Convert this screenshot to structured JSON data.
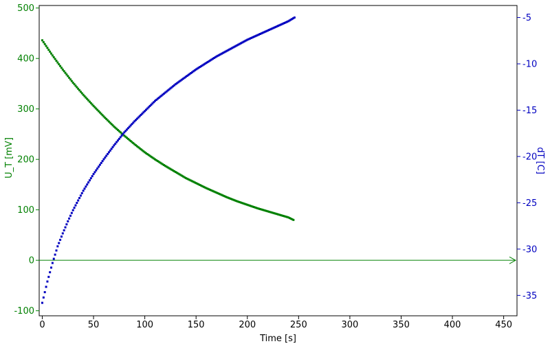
{
  "chart_data": {
    "type": "scatter",
    "xlabel": "Time [s]",
    "x_ticks": [
      0,
      50,
      100,
      150,
      200,
      250,
      300,
      350,
      400,
      450
    ],
    "xlim": [
      -3,
      463
    ],
    "y_left": {
      "label": "U_T [mV]",
      "ylim": [
        -110,
        505
      ],
      "ticks": [
        -100,
        0,
        100,
        200,
        300,
        400,
        500
      ],
      "color": "#008000"
    },
    "y_right": {
      "label": "dT [C]",
      "ylim": [
        -37.2,
        -3.7
      ],
      "ticks": [
        -35,
        -30,
        -25,
        -20,
        -15,
        -10,
        -5
      ],
      "color": "#0000c0"
    },
    "zero_line_color": "#008000",
    "series": [
      {
        "axis": "left",
        "color": "#008000",
        "x": [
          0,
          10,
          20,
          30,
          40,
          50,
          60,
          70,
          80,
          90,
          100,
          110,
          120,
          130,
          140,
          150,
          160,
          170,
          180,
          190,
          200,
          210,
          220,
          230,
          240,
          245
        ],
        "y": [
          436,
          406,
          378,
          352,
          328,
          306,
          285,
          265,
          247,
          230,
          214,
          200,
          187,
          175,
          163,
          153,
          143,
          134,
          125,
          117,
          110,
          103,
          97,
          91,
          85,
          80
        ]
      },
      {
        "axis": "right",
        "color": "#0000c0",
        "x": [
          0,
          5,
          10,
          15,
          20,
          25,
          30,
          40,
          50,
          60,
          70,
          80,
          90,
          100,
          110,
          120,
          130,
          140,
          150,
          160,
          170,
          180,
          190,
          200,
          210,
          220,
          230,
          240,
          246
        ],
        "y": [
          -35.8,
          -33.5,
          -31.5,
          -29.7,
          -28.3,
          -27.0,
          -25.8,
          -23.7,
          -21.9,
          -20.3,
          -18.8,
          -17.4,
          -16.2,
          -15.1,
          -14.0,
          -13.1,
          -12.2,
          -11.4,
          -10.6,
          -9.9,
          -9.2,
          -8.6,
          -8.0,
          -7.4,
          -6.9,
          -6.4,
          -5.9,
          -5.4,
          -5.0
        ]
      }
    ]
  }
}
